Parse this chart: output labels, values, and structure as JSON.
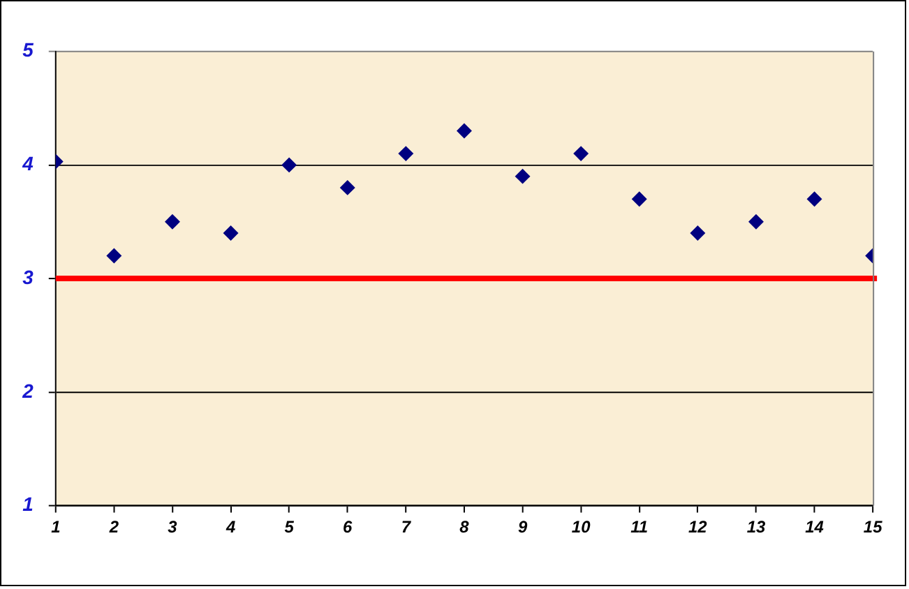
{
  "chart_data": {
    "type": "scatter",
    "x": [
      1,
      2,
      3,
      4,
      5,
      6,
      7,
      8,
      9,
      10,
      11,
      12,
      13,
      14,
      15
    ],
    "values": [
      4.03,
      3.2,
      3.5,
      3.4,
      4.0,
      3.8,
      4.1,
      4.3,
      3.9,
      4.1,
      3.7,
      3.4,
      3.5,
      3.7,
      3.2
    ],
    "color": "#000080",
    "marker": "diamond",
    "xlim": [
      1,
      15
    ],
    "xticks": [
      1,
      2,
      3,
      4,
      5,
      6,
      7,
      8,
      9,
      10,
      11,
      12,
      13,
      14,
      15
    ],
    "ylim": [
      1,
      5
    ],
    "yticks": [
      1,
      2,
      3,
      4,
      5
    ],
    "grid": "y",
    "legend": false,
    "ref_lines": [
      {
        "axis": "y",
        "value": 3,
        "color": "#ff0000"
      }
    ]
  }
}
